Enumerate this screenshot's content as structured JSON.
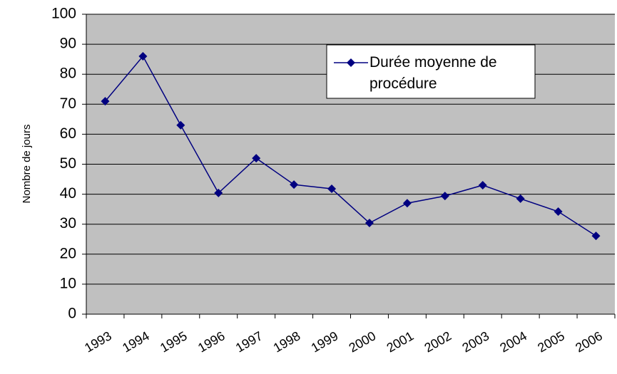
{
  "chart_data": {
    "type": "line",
    "y_label": "Nombre de jours",
    "categories": [
      "1993",
      "1994",
      "1995",
      "1996",
      "1997",
      "1998",
      "1999",
      "2000",
      "2001",
      "2002",
      "2003",
      "2004",
      "2005",
      "2006"
    ],
    "series": [
      {
        "name": "Durée moyenne de procédure",
        "color": "#000080",
        "values": [
          71,
          86,
          63,
          40.4,
          52,
          43.2,
          41.8,
          30.4,
          37,
          39.4,
          43,
          38.5,
          34.2,
          26.1
        ]
      }
    ],
    "ylim": [
      0,
      100
    ],
    "yticks": [
      0,
      10,
      20,
      30,
      40,
      50,
      60,
      70,
      80,
      90,
      100
    ],
    "grid": true,
    "legend": "upper right"
  }
}
